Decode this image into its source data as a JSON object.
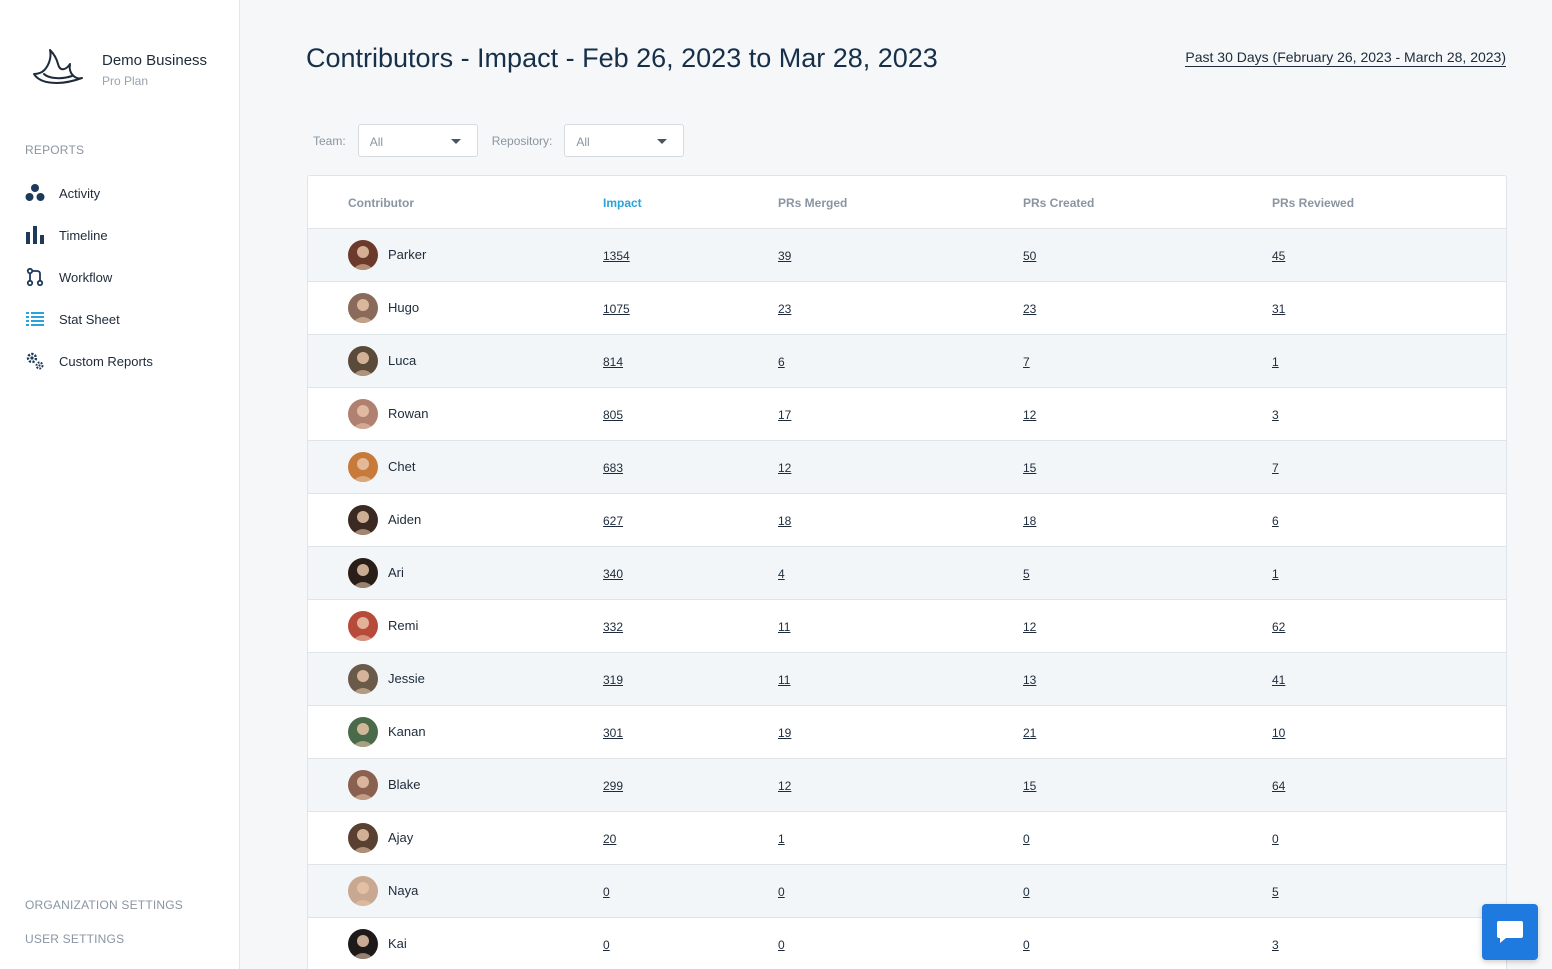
{
  "brand": {
    "name": "Demo Business",
    "plan": "Pro Plan"
  },
  "sidebar": {
    "section_title": "REPORTS",
    "items": [
      {
        "label": "Activity",
        "icon": "activity-icon"
      },
      {
        "label": "Timeline",
        "icon": "bar-chart-icon"
      },
      {
        "label": "Workflow",
        "icon": "git-branch-icon"
      },
      {
        "label": "Stat Sheet",
        "icon": "list-icon"
      },
      {
        "label": "Custom Reports",
        "icon": "gears-icon"
      }
    ],
    "org_settings": "ORGANIZATION SETTINGS",
    "user_settings": "USER SETTINGS"
  },
  "header": {
    "title": "Contributors - Impact - Feb 26, 2023 to Mar 28, 2023",
    "date_range": "Past 30 Days (February 26, 2023 - March 28, 2023)"
  },
  "filters": {
    "team_label": "Team:",
    "team_value": "All",
    "repo_label": "Repository:",
    "repo_value": "All"
  },
  "table": {
    "columns": [
      "Contributor",
      "Impact",
      "PRs Merged",
      "PRs Created",
      "PRs Reviewed"
    ],
    "sorted_column": "Impact",
    "rows": [
      {
        "name": "Parker",
        "impact": "1354",
        "merged": "39",
        "created": "50",
        "reviewed": "45",
        "avatar_color": "#6b3a2a"
      },
      {
        "name": "Hugo",
        "impact": "1075",
        "merged": "23",
        "created": "23",
        "reviewed": "31",
        "avatar_color": "#8a6a5a"
      },
      {
        "name": "Luca",
        "impact": "814",
        "merged": "6",
        "created": "7",
        "reviewed": "1",
        "avatar_color": "#5a4a3a"
      },
      {
        "name": "Rowan",
        "impact": "805",
        "merged": "17",
        "created": "12",
        "reviewed": "3",
        "avatar_color": "#b08070"
      },
      {
        "name": "Chet",
        "impact": "683",
        "merged": "12",
        "created": "15",
        "reviewed": "7",
        "avatar_color": "#c87a3a"
      },
      {
        "name": "Aiden",
        "impact": "627",
        "merged": "18",
        "created": "18",
        "reviewed": "6",
        "avatar_color": "#3a2a22"
      },
      {
        "name": "Ari",
        "impact": "340",
        "merged": "4",
        "created": "5",
        "reviewed": "1",
        "avatar_color": "#2a1e18"
      },
      {
        "name": "Remi",
        "impact": "332",
        "merged": "11",
        "created": "12",
        "reviewed": "62",
        "avatar_color": "#b84a3a"
      },
      {
        "name": "Jessie",
        "impact": "319",
        "merged": "11",
        "created": "13",
        "reviewed": "41",
        "avatar_color": "#6a5a4a"
      },
      {
        "name": "Kanan",
        "impact": "301",
        "merged": "19",
        "created": "21",
        "reviewed": "10",
        "avatar_color": "#4a6a4a"
      },
      {
        "name": "Blake",
        "impact": "299",
        "merged": "12",
        "created": "15",
        "reviewed": "64",
        "avatar_color": "#8a6050"
      },
      {
        "name": "Ajay",
        "impact": "20",
        "merged": "1",
        "created": "0",
        "reviewed": "0",
        "avatar_color": "#5a4030"
      },
      {
        "name": "Naya",
        "impact": "0",
        "merged": "0",
        "created": "0",
        "reviewed": "5",
        "avatar_color": "#c8a890"
      },
      {
        "name": "Kai",
        "impact": "0",
        "merged": "0",
        "created": "0",
        "reviewed": "3",
        "avatar_color": "#1e1a1a"
      }
    ]
  },
  "chat": {
    "icon": "chat-bubble-icon"
  },
  "colors": {
    "accent": "#2aa3d8",
    "chat_button": "#1f7ae0",
    "nav_icon": "#1d3a5a"
  }
}
